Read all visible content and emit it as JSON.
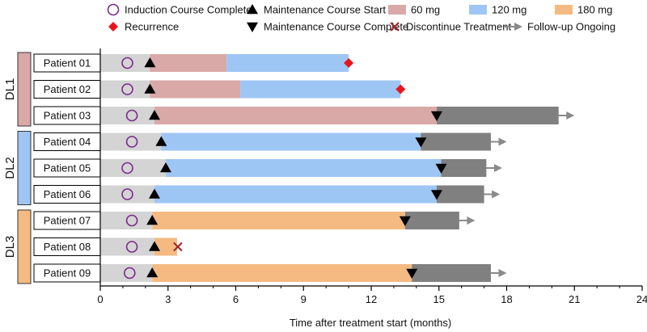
{
  "chart_data": {
    "type": "bar",
    "orientation": "horizontal",
    "title": "",
    "xlabel": "Time after treatment start (months)",
    "ylabel": "",
    "xlim": [
      0,
      24
    ],
    "xticks": [
      0,
      3,
      6,
      9,
      12,
      15,
      18,
      21,
      24
    ],
    "colors": {
      "induction": "#d4d4d4",
      "60 mg": "#d9a9a8",
      "120 mg": "#9ec6f4",
      "180 mg": "#f4ba82",
      "post": "#808080",
      "recurrence": "#e8161c",
      "discontinue": "#a0242a",
      "circle": "#7a2a8c",
      "arrow": "#8a8a8a"
    },
    "legend": {
      "row1": [
        {
          "label": "Induction Course Complete",
          "symbol": "circle"
        },
        {
          "label": "Maintenance Course Start",
          "symbol": "triangle-up"
        },
        {
          "label": "60 mg",
          "symbol": "swatch",
          "color": "#d9a9a8"
        },
        {
          "label": "120 mg",
          "symbol": "swatch",
          "color": "#9ec6f4"
        },
        {
          "label": "180 mg",
          "symbol": "swatch",
          "color": "#f4ba82"
        }
      ],
      "row2": [
        {
          "label": "Recurrence",
          "symbol": "diamond"
        },
        {
          "label": "Maintenance Course Complete",
          "symbol": "triangle-down"
        },
        {
          "label": "Discontinue Treatment",
          "symbol": "cross"
        },
        {
          "label": "Follow-up Ongoing",
          "symbol": "arrow"
        }
      ]
    },
    "groups": [
      {
        "label": "DL1",
        "color": "#d9a9a8",
        "patients": [
          0,
          1,
          2
        ]
      },
      {
        "label": "DL2",
        "color": "#9ec6f4",
        "patients": [
          3,
          4,
          5
        ]
      },
      {
        "label": "DL3",
        "color": "#f4ba82",
        "patients": [
          6,
          7,
          8
        ]
      }
    ],
    "patients": [
      {
        "name": "Patient 01",
        "dose": "60 mg",
        "segments": [
          {
            "start": 0,
            "end": 2.2,
            "type": "induction"
          },
          {
            "start": 2.2,
            "end": 5.6,
            "type": "60 mg"
          },
          {
            "start": 5.6,
            "end": 11.0,
            "type": "120 mg"
          }
        ],
        "induction_complete": 1.2,
        "maintenance_start": 2.2,
        "maintenance_complete": null,
        "recurrence": 11.0,
        "discontinue": null,
        "arrow_end": null
      },
      {
        "name": "Patient 02",
        "dose": "60 mg",
        "segments": [
          {
            "start": 0,
            "end": 2.2,
            "type": "induction"
          },
          {
            "start": 2.2,
            "end": 6.2,
            "type": "60 mg"
          },
          {
            "start": 6.2,
            "end": 13.3,
            "type": "120 mg"
          }
        ],
        "induction_complete": 1.2,
        "maintenance_start": 2.2,
        "maintenance_complete": null,
        "recurrence": 13.3,
        "discontinue": null,
        "arrow_end": null
      },
      {
        "name": "Patient 03",
        "dose": "60 mg",
        "segments": [
          {
            "start": 0,
            "end": 2.4,
            "type": "induction"
          },
          {
            "start": 2.4,
            "end": 14.9,
            "type": "60 mg"
          },
          {
            "start": 14.9,
            "end": 20.3,
            "type": "post"
          }
        ],
        "induction_complete": 1.4,
        "maintenance_start": 2.4,
        "maintenance_complete": 14.9,
        "recurrence": null,
        "discontinue": null,
        "arrow_end": 21.0
      },
      {
        "name": "Patient 04",
        "dose": "120 mg",
        "segments": [
          {
            "start": 0,
            "end": 2.7,
            "type": "induction"
          },
          {
            "start": 2.7,
            "end": 14.2,
            "type": "120 mg"
          },
          {
            "start": 14.2,
            "end": 17.3,
            "type": "post"
          }
        ],
        "induction_complete": 1.4,
        "maintenance_start": 2.7,
        "maintenance_complete": 14.2,
        "recurrence": null,
        "discontinue": null,
        "arrow_end": 18.0
      },
      {
        "name": "Patient 05",
        "dose": "120 mg",
        "segments": [
          {
            "start": 0,
            "end": 2.9,
            "type": "induction"
          },
          {
            "start": 2.9,
            "end": 15.1,
            "type": "120 mg"
          },
          {
            "start": 15.1,
            "end": 17.1,
            "type": "post"
          }
        ],
        "induction_complete": 1.2,
        "maintenance_start": 2.9,
        "maintenance_complete": 15.1,
        "recurrence": null,
        "discontinue": null,
        "arrow_end": 17.8
      },
      {
        "name": "Patient 06",
        "dose": "120 mg",
        "segments": [
          {
            "start": 0,
            "end": 2.4,
            "type": "induction"
          },
          {
            "start": 2.4,
            "end": 14.9,
            "type": "120 mg"
          },
          {
            "start": 14.9,
            "end": 17.0,
            "type": "post"
          }
        ],
        "induction_complete": 1.2,
        "maintenance_start": 2.4,
        "maintenance_complete": 14.9,
        "recurrence": null,
        "discontinue": null,
        "arrow_end": 17.7
      },
      {
        "name": "Patient 07",
        "dose": "180 mg",
        "segments": [
          {
            "start": 0,
            "end": 2.3,
            "type": "induction"
          },
          {
            "start": 2.3,
            "end": 13.5,
            "type": "180 mg"
          },
          {
            "start": 13.5,
            "end": 15.9,
            "type": "post"
          }
        ],
        "induction_complete": 1.4,
        "maintenance_start": 2.3,
        "maintenance_complete": 13.5,
        "recurrence": null,
        "discontinue": null,
        "arrow_end": 16.6
      },
      {
        "name": "Patient 08",
        "dose": "180 mg",
        "segments": [
          {
            "start": 0,
            "end": 2.4,
            "type": "induction"
          },
          {
            "start": 2.4,
            "end": 3.4,
            "type": "180 mg"
          }
        ],
        "induction_complete": 1.4,
        "maintenance_start": 2.4,
        "maintenance_complete": null,
        "recurrence": null,
        "discontinue": 3.4,
        "arrow_end": null
      },
      {
        "name": "Patient 09",
        "dose": "180 mg",
        "segments": [
          {
            "start": 0,
            "end": 2.3,
            "type": "induction"
          },
          {
            "start": 2.3,
            "end": 13.8,
            "type": "180 mg"
          },
          {
            "start": 13.8,
            "end": 17.3,
            "type": "post"
          }
        ],
        "induction_complete": 1.3,
        "maintenance_start": 2.3,
        "maintenance_complete": 13.8,
        "recurrence": null,
        "discontinue": null,
        "arrow_end": 18.0
      }
    ]
  }
}
